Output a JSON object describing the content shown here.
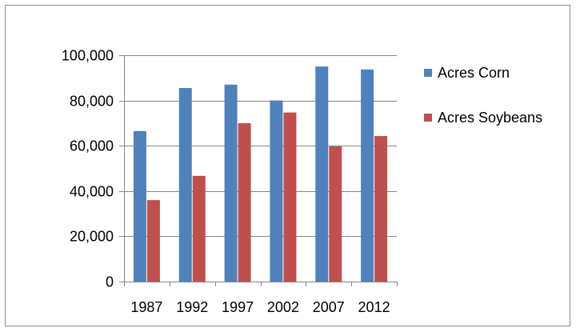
{
  "chart_data": {
    "type": "bar",
    "title": "",
    "xlabel": "",
    "ylabel": "",
    "categories": [
      "1987",
      "1992",
      "1997",
      "2002",
      "2007",
      "2012"
    ],
    "series": [
      {
        "name": "Acres Corn",
        "color": "#4f81bd",
        "values": [
          66500,
          85500,
          87000,
          80000,
          95000,
          93700
        ]
      },
      {
        "name": "Acres Soybeans",
        "color": "#c0504d",
        "values": [
          36000,
          46700,
          70000,
          74700,
          59700,
          64300
        ]
      }
    ],
    "ylim": [
      0,
      100000
    ],
    "yticks": [
      0,
      20000,
      40000,
      60000,
      80000,
      100000
    ],
    "ytick_labels": [
      "0",
      "20,000",
      "40,000",
      "60,000",
      "80,000",
      "100,000"
    ],
    "grid": true,
    "legend_position": "right"
  }
}
